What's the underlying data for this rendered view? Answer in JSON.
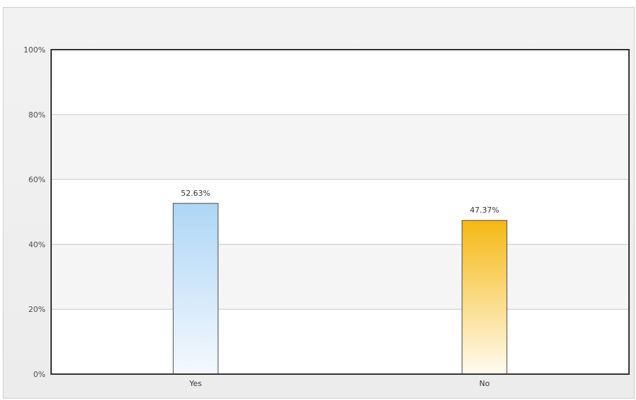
{
  "chart_data": {
    "type": "bar",
    "categories": [
      "Yes",
      "No"
    ],
    "values": [
      52.63,
      47.37
    ],
    "data_labels": [
      "52.63%",
      "47.37%"
    ],
    "y_ticks": [
      0,
      20,
      40,
      60,
      80,
      100
    ],
    "y_tick_labels": [
      "0%",
      "20%",
      "40%",
      "60%",
      "80%",
      "100%"
    ],
    "ylim": [
      0,
      100
    ],
    "grid": true,
    "colors": {
      "Yes": {
        "top": "#aed6f5",
        "bottom": "#f4f9fe"
      },
      "No": {
        "top": "#f5b914",
        "bottom": "#fffbef"
      },
      "bar_border": "#4a4a4a",
      "grid": "#c8c8c8",
      "band_odd": "#f5f5f5",
      "band_even": "#ffffff",
      "axis": "#333333"
    }
  }
}
